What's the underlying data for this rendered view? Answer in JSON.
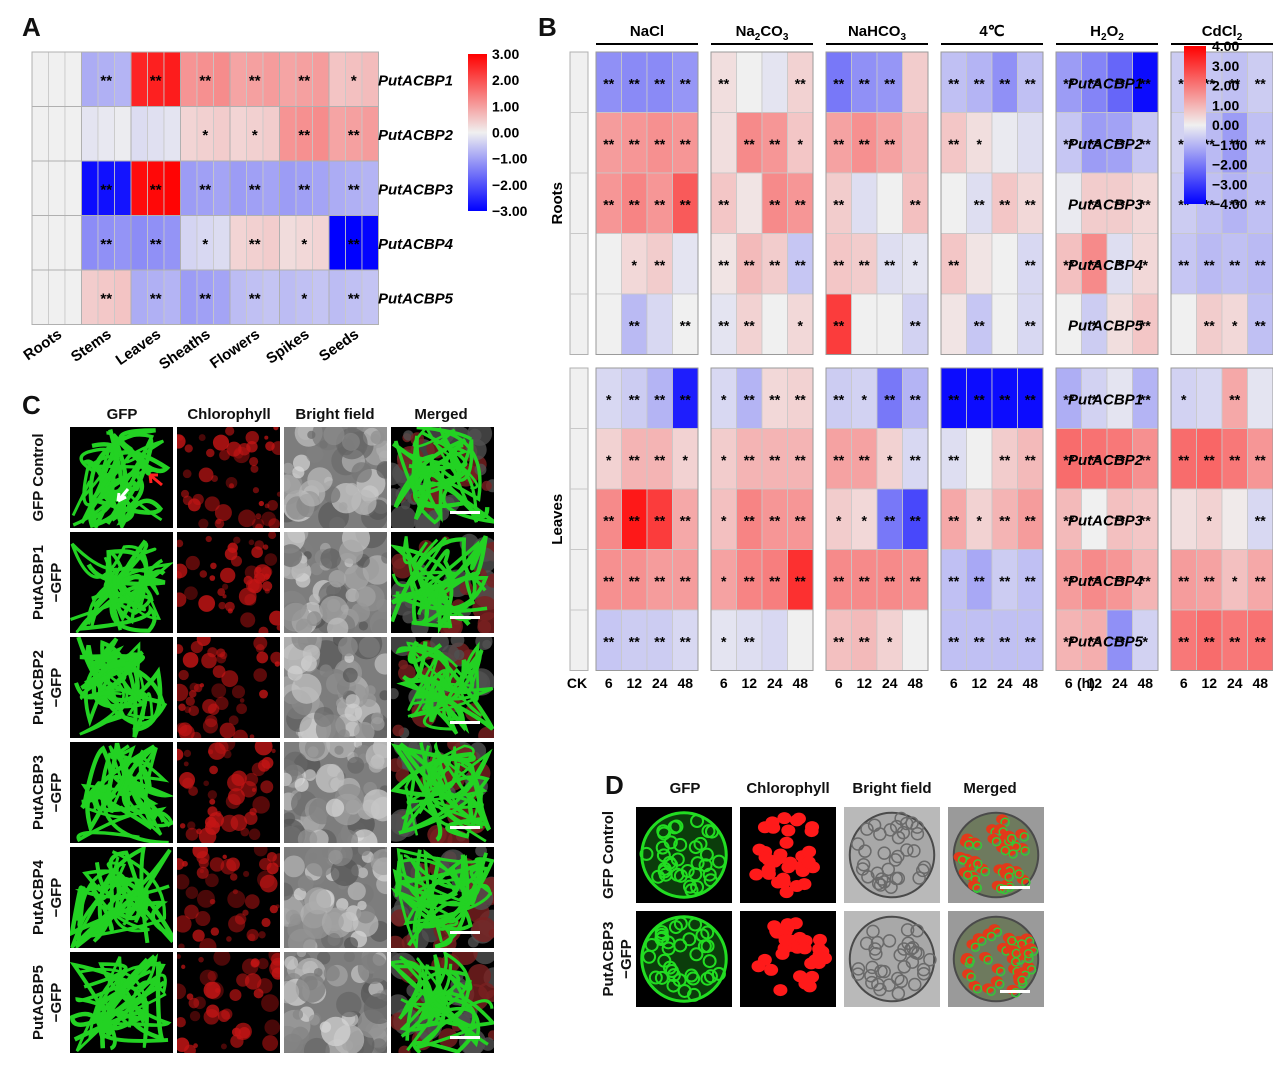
{
  "panel_labels": {
    "a": "A",
    "b": "B",
    "c": "C",
    "d": "D"
  },
  "genes": [
    "PutACBP1",
    "PutACBP2",
    "PutACBP3",
    "PutACBP4",
    "PutACBP5"
  ],
  "colors": {
    "low": "#0000ff",
    "mid": "#f0f0f0",
    "high": "#ff0000",
    "grid": "#c8c8c8",
    "gfp": "#1fbf1f",
    "chl": "#d01818"
  },
  "chart_data": [
    {
      "type": "heatmap",
      "title": "",
      "columns": [
        "Roots",
        "Stems",
        "Leaves",
        "Sheaths",
        "Flowers",
        "Spikes",
        "Seeds"
      ],
      "rows": [
        "PutACBP1",
        "PutACBP2",
        "PutACBP3",
        "PutACBP4",
        "PutACBP5"
      ],
      "replicates_per_column": 3,
      "values": [
        [
          0.0,
          -0.8,
          2.6,
          1.2,
          1.0,
          1.0,
          0.6
        ],
        [
          0.0,
          -0.1,
          -0.2,
          0.4,
          0.4,
          1.2,
          1.0
        ],
        [
          0.0,
          -2.8,
          2.9,
          -1.0,
          -1.0,
          -1.0,
          -0.8
        ],
        [
          0.0,
          -1.2,
          -1.2,
          -0.3,
          0.4,
          0.3,
          -3.0
        ],
        [
          0.0,
          0.5,
          -0.8,
          -1.0,
          -0.6,
          -0.6,
          -0.6
        ]
      ],
      "significance": [
        [
          "",
          "**",
          "**",
          "**",
          "**",
          "**",
          "*"
        ],
        [
          "",
          "",
          "",
          "*",
          "*",
          "**",
          "**"
        ],
        [
          "",
          "**",
          "**",
          "**",
          "**",
          "**",
          "**"
        ],
        [
          "",
          "**",
          "**",
          "*",
          "**",
          "*",
          "**"
        ],
        [
          "",
          "**",
          "**",
          "**",
          "**",
          "*",
          "**"
        ]
      ],
      "scale": {
        "min": -3.0,
        "max": 3.0,
        "tick_labels": [
          "3.00",
          "2.00",
          "1.00",
          "0.00",
          "−1.00",
          "−2.00",
          "−3.00"
        ]
      }
    },
    {
      "type": "heatmap",
      "title": "",
      "treatments": [
        "NaCl",
        "Na2CO3",
        "NaHCO3",
        "4℃",
        "H2O2",
        "CdCl2"
      ],
      "treatment_display": {
        "nacl": "NaCl",
        "na2co3": {
          "a": "Na",
          "sub1": "2",
          "b": "CO",
          "sub2": "3"
        },
        "nahco3": {
          "a": "NaHCO",
          "sub1": "3"
        },
        "cold": "4℃",
        "h2o2": {
          "a": "H",
          "sub1": "2",
          "b": "O",
          "sub2": "2"
        },
        "cdcl2": {
          "a": "CdCl",
          "sub1": "2"
        }
      },
      "timepoints": [
        "6",
        "12",
        "24",
        "48"
      ],
      "ck_label": "CK",
      "time_unit": "(h)",
      "tissues": [
        "Roots",
        "Leaves"
      ],
      "roots": {
        "values": [
          [
            -1.6,
            -1.7,
            -1.7,
            -1.5,
            0.3,
            0.0,
            -0.2,
            0.5,
            -2.0,
            -1.6,
            -1.5,
            0.6,
            -0.8,
            -1.0,
            -1.6,
            -0.8,
            -1.4,
            -1.8,
            -2.3,
            -3.8,
            -0.6,
            -0.7,
            -0.8,
            -0.6
          ],
          [
            1.4,
            1.5,
            1.6,
            1.5,
            0.3,
            1.7,
            1.5,
            0.7,
            1.3,
            1.6,
            1.3,
            0.9,
            0.7,
            0.3,
            -0.1,
            -0.3,
            -0.7,
            -1.4,
            -1.3,
            -0.7,
            -0.5,
            -0.9,
            -1.4,
            -0.8
          ],
          [
            1.5,
            1.8,
            1.5,
            2.5,
            0.7,
            0.2,
            1.7,
            1.5,
            0.6,
            -0.3,
            0.0,
            0.8,
            0.0,
            -0.3,
            0.7,
            0.4,
            -0.1,
            0.6,
            0.6,
            0.4,
            -0.6,
            -0.8,
            -1.0,
            -0.8
          ],
          [
            0.0,
            0.4,
            0.6,
            -0.2,
            0.2,
            0.9,
            0.6,
            -0.7,
            0.7,
            0.6,
            -0.3,
            -0.2,
            0.7,
            0.2,
            0.0,
            -0.4,
            0.8,
            1.7,
            -0.3,
            0.4,
            -0.7,
            -0.9,
            -0.8,
            -0.9
          ],
          [
            0.0,
            -0.9,
            -0.4,
            0.0,
            -0.2,
            0.5,
            0.0,
            0.4,
            3.0,
            0.0,
            0.0,
            -0.5,
            0.2,
            -0.7,
            0.0,
            -0.4,
            0.0,
            -0.6,
            0.3,
            0.7,
            0.0,
            0.6,
            0.4,
            -0.8
          ]
        ],
        "significance": [
          [
            "**",
            "**",
            "**",
            "**",
            "**",
            "",
            "",
            "**",
            "**",
            "**",
            "**",
            "",
            "**",
            "**",
            "**",
            "**",
            "**",
            "**",
            "**",
            "**",
            "**",
            "**",
            "**",
            "**"
          ],
          [
            "**",
            "**",
            "**",
            "**",
            "",
            "**",
            "**",
            "*",
            "**",
            "**",
            "**",
            "",
            "**",
            "*",
            "",
            "",
            "**",
            "**",
            "**",
            "**",
            "**",
            "**",
            "**",
            "**"
          ],
          [
            "**",
            "**",
            "**",
            "**",
            "**",
            "",
            "**",
            "**",
            "**",
            "",
            "",
            "**",
            "",
            "**",
            "**",
            "**",
            "",
            "**",
            "**",
            "**",
            "**",
            "**",
            "**",
            "**"
          ],
          [
            "",
            "*",
            "**",
            "",
            "**",
            "**",
            "**",
            "**",
            "**",
            "**",
            "**",
            "*",
            "**",
            "",
            "",
            "**",
            "**",
            "**",
            "*",
            "*",
            "**",
            "**",
            "**",
            "**"
          ],
          [
            "",
            "**",
            "",
            "**",
            "**",
            "**",
            "",
            "*",
            "**",
            "",
            "",
            "**",
            "",
            "**",
            "",
            "**",
            "",
            "*",
            "",
            "**",
            "",
            "**",
            "*",
            "**"
          ]
        ]
      },
      "leaves": {
        "values": [
          [
            -0.4,
            -0.6,
            -1.0,
            -3.5,
            -0.4,
            -1.0,
            0.4,
            0.5,
            -0.6,
            -0.5,
            -2.0,
            -1.0,
            -3.8,
            -3.8,
            -3.8,
            -3.8,
            -1.1,
            -0.5,
            -0.2,
            -1.0,
            -0.5,
            -0.4,
            1.2,
            -0.2
          ],
          [
            0.5,
            1.0,
            1.0,
            0.5,
            0.6,
            1.0,
            1.0,
            1.0,
            1.3,
            1.3,
            0.5,
            -0.4,
            -0.3,
            0.0,
            0.6,
            0.9,
            2.2,
            2.1,
            2.0,
            1.6,
            2.2,
            2.3,
            2.0,
            1.5
          ],
          [
            1.7,
            3.6,
            3.0,
            1.2,
            0.8,
            1.8,
            1.5,
            1.5,
            0.6,
            0.4,
            -2.0,
            -2.8,
            1.2,
            0.5,
            1.0,
            1.4,
            0.9,
            0.0,
            0.8,
            0.7,
            0.3,
            0.5,
            0.1,
            -0.4
          ],
          [
            1.6,
            1.6,
            1.4,
            1.4,
            1.3,
            1.8,
            1.9,
            3.2,
            1.7,
            1.7,
            1.7,
            1.6,
            -0.8,
            -1.2,
            -0.6,
            -0.8,
            1.4,
            1.7,
            1.5,
            1.0,
            1.4,
            1.3,
            0.8,
            1.2
          ],
          [
            -0.7,
            -0.6,
            -0.6,
            -0.4,
            -0.2,
            -0.3,
            -0.4,
            0.0,
            0.8,
            0.9,
            0.5,
            0.0,
            -0.8,
            -0.8,
            -0.8,
            -0.8,
            1.0,
            1.1,
            -1.6,
            -0.5,
            2.0,
            2.2,
            2.0,
            2.1
          ]
        ],
        "significance": [
          [
            "*",
            "**",
            "**",
            "**",
            "*",
            "**",
            "**",
            "**",
            "**",
            "*",
            "**",
            "**",
            "**",
            "**",
            "**",
            "**",
            "**",
            "*",
            "",
            "**",
            "*",
            "",
            "**",
            ""
          ],
          [
            "*",
            "**",
            "**",
            "*",
            "*",
            "**",
            "**",
            "**",
            "**",
            "**",
            "*",
            "**",
            "**",
            "",
            "**",
            "**",
            "**",
            "**",
            "**",
            "**",
            "**",
            "**",
            "**",
            "**"
          ],
          [
            "**",
            "**",
            "**",
            "**",
            "*",
            "**",
            "**",
            "**",
            "*",
            "*",
            "**",
            "**",
            "**",
            "*",
            "**",
            "**",
            "**",
            "",
            "**",
            "**",
            "",
            "*",
            "",
            "**"
          ],
          [
            "**",
            "**",
            "**",
            "**",
            "*",
            "**",
            "**",
            "**",
            "**",
            "**",
            "**",
            "**",
            "**",
            "**",
            "**",
            "**",
            "**",
            "**",
            "**",
            "**",
            "**",
            "**",
            "*",
            "**"
          ],
          [
            "**",
            "**",
            "**",
            "**",
            "*",
            "**",
            "",
            "",
            "**",
            "**",
            "*",
            "",
            "**",
            "**",
            "**",
            "**",
            "**",
            "**",
            "**",
            "*",
            "**",
            "**",
            "**",
            "**"
          ]
        ]
      },
      "scale": {
        "min": -4.0,
        "max": 4.0,
        "tick_labels": [
          "4.00",
          "3.00",
          "2.00",
          "1.00",
          "0.00",
          "−1.00",
          "−2.00",
          "−3.00",
          "−4.00"
        ]
      }
    }
  ],
  "panel_c": {
    "column_headers": [
      "GFP",
      "Chlorophyll",
      "Bright field",
      "Merged"
    ],
    "row_labels": [
      {
        "line1": "GFP Control",
        "line2": ""
      },
      {
        "line1": "PutACBP1",
        "line2": "−GFP"
      },
      {
        "line1": "PutACBP2",
        "line2": "−GFP"
      },
      {
        "line1": "PutACBP3",
        "line2": "−GFP"
      },
      {
        "line1": "PutACBP4",
        "line2": "−GFP"
      },
      {
        "line1": "PutACBP5",
        "line2": "−GFP"
      }
    ]
  },
  "panel_d": {
    "column_headers": [
      "GFP",
      "Chlorophyll",
      "Bright field",
      "Merged"
    ],
    "row_labels": [
      {
        "line1": "GFP Control",
        "line2": ""
      },
      {
        "line1": "PutACBP3",
        "line2": "−GFP"
      }
    ]
  }
}
